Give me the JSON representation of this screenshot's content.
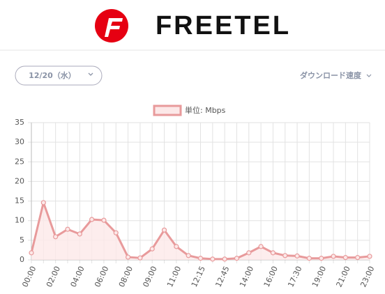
{
  "header": {
    "brand": "FREETEL"
  },
  "controls": {
    "date": "12/20（水）",
    "metric": "ダウンロード速度"
  },
  "chart_data": {
    "type": "line",
    "categories": [
      "00:00",
      null,
      "02:00",
      null,
      "04:00",
      null,
      "06:00",
      null,
      "08:00",
      null,
      "09:00",
      null,
      "11:00",
      null,
      "12:15",
      null,
      "12:45",
      null,
      "14:00",
      null,
      "16:00",
      null,
      "17:30",
      null,
      "19:00",
      null,
      "21:00",
      null,
      "23:00"
    ],
    "series": [
      {
        "name": "単位: Mbps",
        "color": "#e89a9b",
        "fill": "#fce8e8",
        "values": [
          1.8,
          14.6,
          5.9,
          7.8,
          6.6,
          10.3,
          10.1,
          6.9,
          0.7,
          0.5,
          2.8,
          7.6,
          3.4,
          1.1,
          0.4,
          0.2,
          0.2,
          0.4,
          1.8,
          3.4,
          1.8,
          1.1,
          1.0,
          0.4,
          0.4,
          0.9,
          0.6,
          0.6,
          0.9
        ]
      }
    ],
    "ylim": [
      0,
      35
    ],
    "yticks": [
      0,
      5,
      10,
      15,
      20,
      25,
      30,
      35
    ],
    "grid": true
  }
}
